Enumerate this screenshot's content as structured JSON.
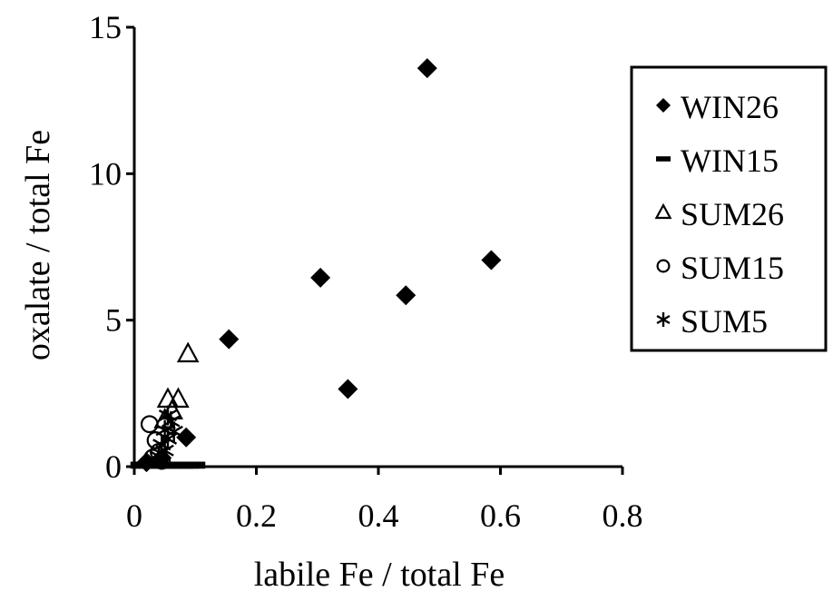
{
  "chart_data": {
    "type": "scatter",
    "title": "",
    "xlabel": "labile Fe / total Fe",
    "ylabel": "oxalate / total Fe",
    "xlim": [
      0,
      0.8
    ],
    "ylim": [
      0,
      15
    ],
    "x_ticks": [
      0,
      0.2,
      0.4,
      0.6,
      0.8
    ],
    "x_tick_labels": [
      "0",
      "0.2",
      "0.4",
      "0.6",
      "0.8"
    ],
    "y_ticks": [
      0,
      5,
      10,
      15
    ],
    "y_tick_labels": [
      "0",
      "5",
      "10",
      "15"
    ],
    "grid": false,
    "legend_position": "top-right",
    "series": [
      {
        "name": "WIN26",
        "marker": "diamond",
        "points": [
          [
            0.48,
            13.6
          ],
          [
            0.585,
            7.05
          ],
          [
            0.305,
            6.45
          ],
          [
            0.445,
            5.85
          ],
          [
            0.155,
            4.35
          ],
          [
            0.35,
            2.65
          ],
          [
            0.085,
            1.0
          ],
          [
            0.045,
            0.3
          ],
          [
            0.02,
            0.15
          ]
        ]
      },
      {
        "name": "WIN15",
        "marker": "dash",
        "points": [
          [
            0.01,
            0.05
          ],
          [
            0.02,
            0.05
          ],
          [
            0.03,
            0.05
          ],
          [
            0.04,
            0.05
          ],
          [
            0.05,
            0.05
          ],
          [
            0.06,
            0.05
          ],
          [
            0.07,
            0.05
          ],
          [
            0.08,
            0.05
          ],
          [
            0.09,
            0.05
          ],
          [
            0.1,
            0.05
          ]
        ]
      },
      {
        "name": "SUM26",
        "marker": "triangle",
        "points": [
          [
            0.088,
            3.85
          ],
          [
            0.055,
            2.3
          ],
          [
            0.072,
            2.3
          ],
          [
            0.062,
            1.9
          ],
          [
            0.05,
            1.6
          ]
        ]
      },
      {
        "name": "SUM15",
        "marker": "circle",
        "points": [
          [
            0.025,
            1.45
          ],
          [
            0.035,
            0.9
          ],
          [
            0.04,
            0.5
          ],
          [
            0.03,
            0.3
          ],
          [
            0.045,
            0.2
          ]
        ]
      },
      {
        "name": "SUM5",
        "marker": "asterisk",
        "points": [
          [
            0.055,
            1.75
          ],
          [
            0.06,
            1.55
          ],
          [
            0.05,
            1.25
          ],
          [
            0.065,
            1.2
          ],
          [
            0.055,
            0.95
          ],
          [
            0.045,
            0.75
          ],
          [
            0.05,
            0.55
          ],
          [
            0.04,
            0.35
          ]
        ]
      }
    ]
  }
}
